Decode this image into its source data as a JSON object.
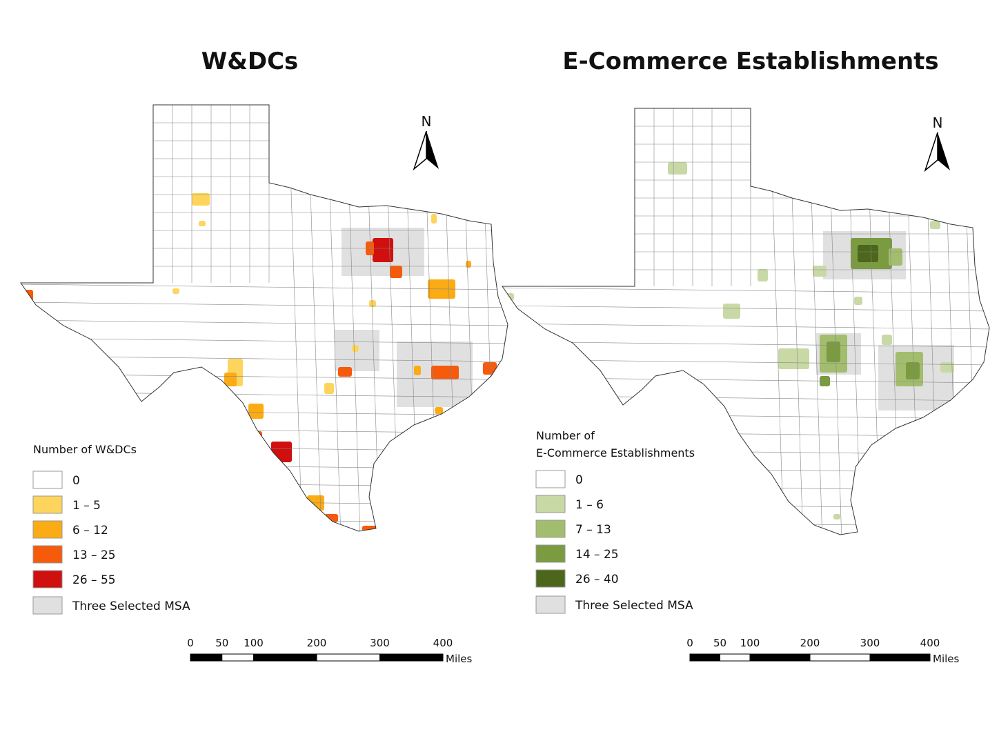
{
  "maps": [
    {
      "title": "W&DCs",
      "north": "N",
      "legend": {
        "title_lines": [
          "Number of W&DCs"
        ],
        "items": [
          {
            "label": "0",
            "color": "#ffffff"
          },
          {
            "label": "1 – 5",
            "color": "#fdd55c"
          },
          {
            "label": "6 – 12",
            "color": "#fbab14"
          },
          {
            "label": "13 – 25",
            "color": "#f65a0b"
          },
          {
            "label": "26 – 55",
            "color": "#d0100f"
          },
          {
            "label": "Three Selected MSA",
            "color": "#e0e0e0"
          }
        ]
      },
      "scale": {
        "ticks": [
          0,
          50,
          100,
          200,
          300,
          400
        ],
        "unit": "Miles"
      }
    },
    {
      "title": "E-Commerce Establishments",
      "north": "N",
      "legend": {
        "title_lines": [
          "Number of",
          "E-Commerce Establishments"
        ],
        "items": [
          {
            "label": "0",
            "color": "#ffffff"
          },
          {
            "label": "1 – 6",
            "color": "#c8d9a6"
          },
          {
            "label": "7 – 13",
            "color": "#a3bd6e"
          },
          {
            "label": "14 – 25",
            "color": "#7a9b40"
          },
          {
            "label": "26 – 40",
            "color": "#4c661c"
          },
          {
            "label": "Three Selected MSA",
            "color": "#e0e0e0"
          }
        ]
      },
      "scale": {
        "ticks": [
          0,
          50,
          100,
          200,
          300,
          400
        ],
        "unit": "Miles"
      }
    }
  ]
}
